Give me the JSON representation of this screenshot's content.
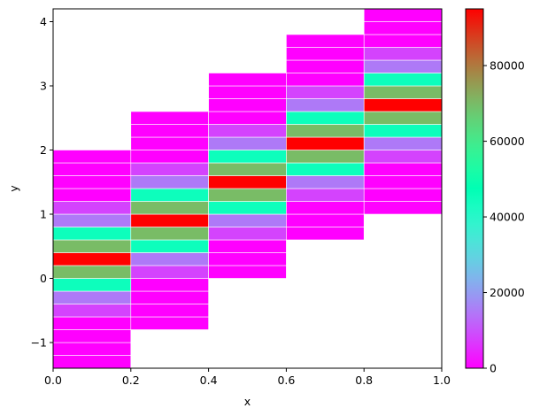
{
  "chart_data": {
    "type": "heatmap",
    "xlabel": "x",
    "ylabel": "y",
    "xlim": [
      0,
      1
    ],
    "ylim": [
      -1.4,
      4.2
    ],
    "x_ticks": [
      "0.0",
      "0.2",
      "0.4",
      "0.6",
      "0.8",
      "1.0"
    ],
    "x_tick_values": [
      0,
      0.2,
      0.4,
      0.6,
      0.8,
      1.0
    ],
    "y_ticks": [
      "−1",
      "0",
      "1",
      "2",
      "3",
      "4"
    ],
    "y_tick_values": [
      -1,
      0,
      1,
      2,
      3,
      4
    ],
    "colorbar": {
      "colormap": "rainbow",
      "range": [
        0,
        95000
      ],
      "ticks": [
        "0",
        "20000",
        "40000",
        "60000",
        "80000"
      ],
      "tick_values": [
        0,
        20000,
        40000,
        60000,
        80000
      ]
    },
    "columns": [
      {
        "x0": 0.0,
        "x1": 0.2,
        "y_start": -1.4,
        "bin_height": 0.2,
        "values": [
          0,
          0,
          0,
          0,
          8000,
          15000,
          45000,
          70000,
          95000,
          70000,
          45000,
          15000,
          8000,
          0,
          0,
          0,
          0
        ]
      },
      {
        "x0": 0.2,
        "x1": 0.4,
        "y_start": -0.8,
        "bin_height": 0.2,
        "values": [
          0,
          0,
          0,
          0,
          8000,
          15000,
          45000,
          70000,
          95000,
          70000,
          45000,
          15000,
          8000,
          0,
          0,
          0,
          0
        ]
      },
      {
        "x0": 0.4,
        "x1": 0.6,
        "y_start": 0.0,
        "bin_height": 0.2,
        "values": [
          0,
          0,
          0,
          8000,
          15000,
          45000,
          70000,
          95000,
          70000,
          45000,
          15000,
          8000,
          0,
          0,
          0,
          0
        ]
      },
      {
        "x0": 0.6,
        "x1": 0.8,
        "y_start": 0.6,
        "bin_height": 0.2,
        "values": [
          0,
          0,
          0,
          8000,
          15000,
          45000,
          70000,
          95000,
          70000,
          45000,
          15000,
          8000,
          0,
          0,
          0,
          0
        ]
      },
      {
        "x0": 0.8,
        "x1": 1.0,
        "y_start": 1.0,
        "bin_height": 0.2,
        "values": [
          0,
          0,
          0,
          0,
          8000,
          15000,
          45000,
          70000,
          95000,
          70000,
          45000,
          15000,
          8000,
          0,
          0,
          0
        ]
      }
    ]
  }
}
